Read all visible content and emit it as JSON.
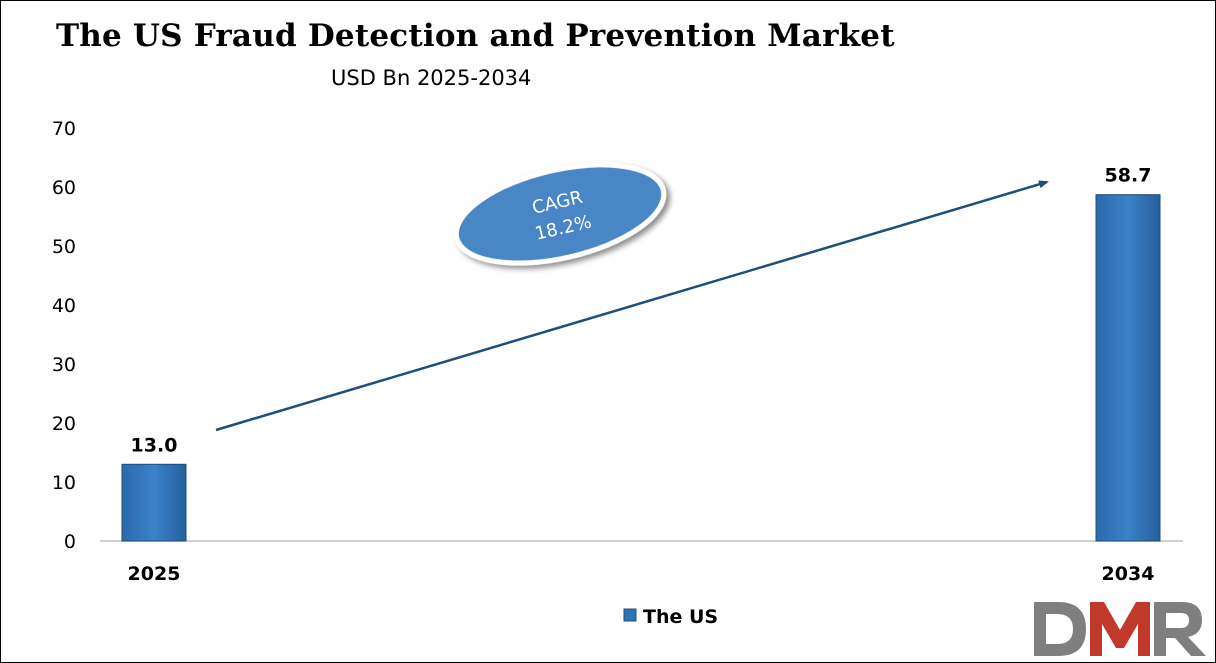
{
  "chart_data": {
    "type": "bar",
    "title": "The US Fraud Detection and Prevention Market",
    "subtitle": "USD Bn 2025-2034",
    "categories": [
      "2025",
      "2034"
    ],
    "series": [
      {
        "name": "The US",
        "values": [
          13.0,
          58.7
        ],
        "labels": [
          "13.0",
          "58.7"
        ]
      }
    ],
    "ylim": [
      0,
      70
    ],
    "yticks": [
      "0",
      "10",
      "20",
      "30",
      "40",
      "50",
      "60",
      "70"
    ],
    "grid": false,
    "legend_position": "bottom-center",
    "annotation": {
      "line1": "CAGR",
      "line2": "18.2%"
    }
  },
  "colors": {
    "bar": "#2e74b5",
    "arrow": "#1f4e79",
    "cagr_ellipse": "#4a86c5",
    "logo_gray": "#7f7f7f",
    "logo_red": "#c0392b"
  },
  "logo": {
    "text": "DMR"
  }
}
